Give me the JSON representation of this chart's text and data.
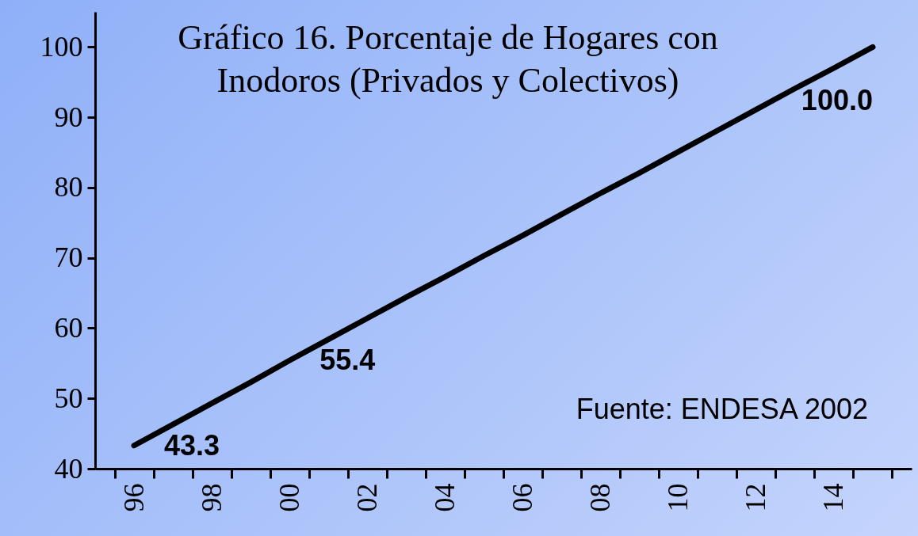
{
  "chart_data": {
    "type": "line",
    "title": "Gráfico 16. Porcentaje de Hogares con\nInodoros (Privados y Colectivos)",
    "categories": [
      "96",
      null,
      "98",
      null,
      "00",
      null,
      "02",
      null,
      "04",
      null,
      "06",
      null,
      "08",
      null,
      "10",
      null,
      "12",
      null,
      "14",
      null
    ],
    "series": [
      {
        "color": "#000000",
        "values": [
          43.3,
          46.3,
          49.3,
          52.3,
          55.4,
          58.4,
          61.4,
          64.4,
          67.3,
          70.3,
          73.2,
          76.2,
          79.2,
          82.1,
          85.1,
          88.1,
          91.1,
          94.1,
          97.0,
          100.0
        ],
        "value_labels": [
          "43.3",
          null,
          null,
          null,
          "55.4",
          null,
          null,
          null,
          null,
          null,
          null,
          null,
          null,
          null,
          null,
          null,
          null,
          null,
          null,
          "100.0"
        ]
      }
    ],
    "ylim": [
      40,
      105
    ],
    "yticks": [
      40,
      50,
      60,
      70,
      80,
      90,
      100
    ],
    "grid": false,
    "marker": "none",
    "line_style": "solid",
    "annotations": [
      "Fuente: ENDESA 2002"
    ]
  }
}
